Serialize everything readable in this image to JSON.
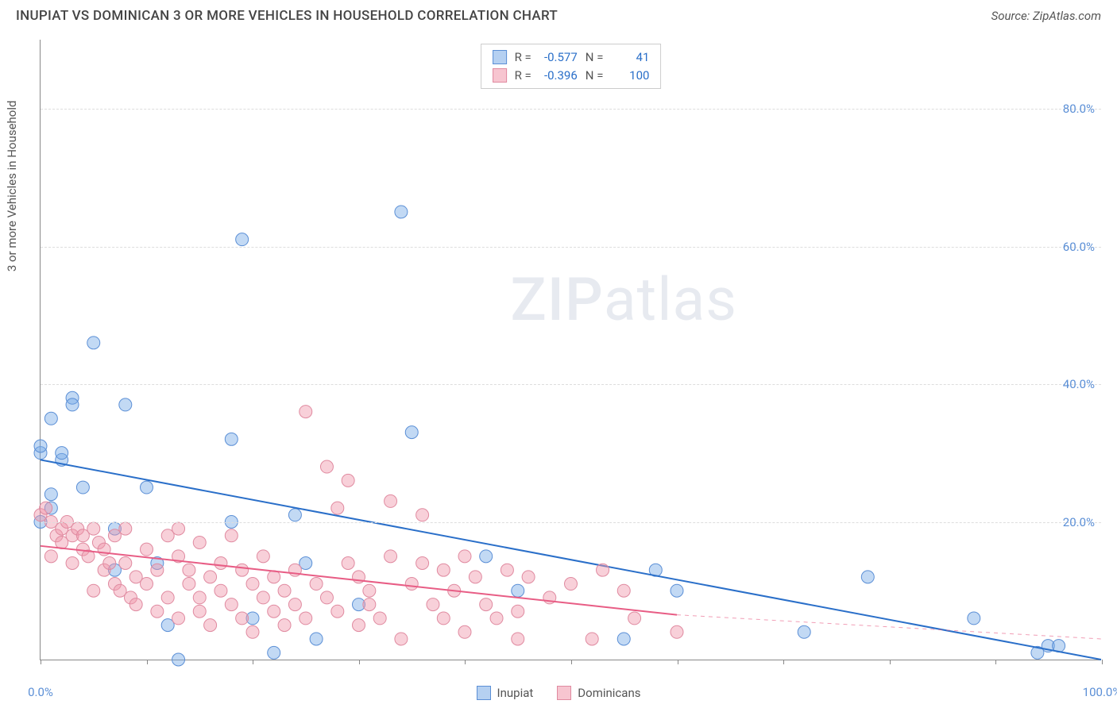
{
  "title": "INUPIAT VS DOMINICAN 3 OR MORE VEHICLES IN HOUSEHOLD CORRELATION CHART",
  "source": "Source: ZipAtlas.com",
  "y_axis_label": "3 or more Vehicles in Household",
  "watermark_bold": "ZIP",
  "watermark_light": "atlas",
  "chart": {
    "type": "scatter",
    "xlim": [
      0,
      100
    ],
    "ylim": [
      0,
      90
    ],
    "y_ticks": [
      20,
      40,
      60,
      80
    ],
    "y_tick_labels": [
      "20.0%",
      "40.0%",
      "60.0%",
      "80.0%"
    ],
    "x_ticks": [
      0,
      10,
      20,
      30,
      40,
      50,
      60,
      70,
      80,
      90,
      100
    ],
    "x_tick_labels_shown": {
      "0": "0.0%",
      "100": "100.0%"
    },
    "background_color": "#ffffff",
    "grid_color": "#dddddd",
    "axis_color": "#888888",
    "series": [
      {
        "name": "Inupiat",
        "color_fill": "rgba(120,170,230,0.45)",
        "color_stroke": "#5b8fd6",
        "marker_radius": 8,
        "R": "-0.577",
        "N": "41",
        "trend": {
          "x1": 0,
          "y1": 29,
          "x2": 100,
          "y2": 0,
          "color": "#2a6fc9",
          "width": 2
        },
        "points": [
          [
            0,
            20
          ],
          [
            0,
            30
          ],
          [
            0,
            31
          ],
          [
            1,
            22
          ],
          [
            1,
            24
          ],
          [
            1,
            35
          ],
          [
            2,
            29
          ],
          [
            2,
            30
          ],
          [
            3,
            38
          ],
          [
            3,
            37
          ],
          [
            4,
            25
          ],
          [
            5,
            46
          ],
          [
            7,
            13
          ],
          [
            7,
            19
          ],
          [
            8,
            37
          ],
          [
            10,
            25
          ],
          [
            11,
            14
          ],
          [
            12,
            5
          ],
          [
            13,
            0
          ],
          [
            18,
            20
          ],
          [
            18,
            32
          ],
          [
            19,
            61
          ],
          [
            20,
            6
          ],
          [
            22,
            1
          ],
          [
            24,
            21
          ],
          [
            25,
            14
          ],
          [
            26,
            3
          ],
          [
            30,
            8
          ],
          [
            34,
            65
          ],
          [
            35,
            33
          ],
          [
            42,
            15
          ],
          [
            45,
            10
          ],
          [
            55,
            3
          ],
          [
            58,
            13
          ],
          [
            60,
            10
          ],
          [
            72,
            4
          ],
          [
            78,
            12
          ],
          [
            88,
            6
          ],
          [
            94,
            1
          ],
          [
            95,
            2
          ],
          [
            96,
            2
          ]
        ]
      },
      {
        "name": "Dominicans",
        "color_fill": "rgba(240,150,170,0.45)",
        "color_stroke": "#e08aa0",
        "marker_radius": 8,
        "R": "-0.396",
        "N": "100",
        "trend": {
          "x1": 0,
          "y1": 16.5,
          "x2": 60,
          "y2": 6.5,
          "color": "#e85d85",
          "width": 2,
          "dash_extend_to_x": 100,
          "dash_y": 3
        },
        "points": [
          [
            0,
            21
          ],
          [
            0.5,
            22
          ],
          [
            1,
            20
          ],
          [
            1,
            15
          ],
          [
            1.5,
            18
          ],
          [
            2,
            19
          ],
          [
            2,
            17
          ],
          [
            2.5,
            20
          ],
          [
            3,
            18
          ],
          [
            3,
            14
          ],
          [
            3.5,
            19
          ],
          [
            4,
            16
          ],
          [
            4,
            18
          ],
          [
            4.5,
            15
          ],
          [
            5,
            19
          ],
          [
            5,
            10
          ],
          [
            5.5,
            17
          ],
          [
            6,
            16
          ],
          [
            6,
            13
          ],
          [
            6.5,
            14
          ],
          [
            7,
            18
          ],
          [
            7,
            11
          ],
          [
            7.5,
            10
          ],
          [
            8,
            14
          ],
          [
            8,
            19
          ],
          [
            8.5,
            9
          ],
          [
            9,
            12
          ],
          [
            9,
            8
          ],
          [
            10,
            16
          ],
          [
            10,
            11
          ],
          [
            11,
            13
          ],
          [
            11,
            7
          ],
          [
            12,
            18
          ],
          [
            12,
            9
          ],
          [
            13,
            15
          ],
          [
            13,
            19
          ],
          [
            13,
            6
          ],
          [
            14,
            11
          ],
          [
            14,
            13
          ],
          [
            15,
            9
          ],
          [
            15,
            17
          ],
          [
            15,
            7
          ],
          [
            16,
            12
          ],
          [
            16,
            5
          ],
          [
            17,
            14
          ],
          [
            17,
            10
          ],
          [
            18,
            8
          ],
          [
            18,
            18
          ],
          [
            19,
            6
          ],
          [
            19,
            13
          ],
          [
            20,
            11
          ],
          [
            20,
            4
          ],
          [
            21,
            9
          ],
          [
            21,
            15
          ],
          [
            22,
            7
          ],
          [
            22,
            12
          ],
          [
            23,
            10
          ],
          [
            23,
            5
          ],
          [
            24,
            13
          ],
          [
            24,
            8
          ],
          [
            25,
            36
          ],
          [
            25,
            6
          ],
          [
            26,
            11
          ],
          [
            27,
            9
          ],
          [
            27,
            28
          ],
          [
            28,
            22
          ],
          [
            28,
            7
          ],
          [
            29,
            14
          ],
          [
            29,
            26
          ],
          [
            30,
            5
          ],
          [
            30,
            12
          ],
          [
            31,
            10
          ],
          [
            31,
            8
          ],
          [
            32,
            6
          ],
          [
            33,
            15
          ],
          [
            33,
            23
          ],
          [
            34,
            3
          ],
          [
            35,
            11
          ],
          [
            36,
            21
          ],
          [
            36,
            14
          ],
          [
            37,
            8
          ],
          [
            38,
            13
          ],
          [
            38,
            6
          ],
          [
            39,
            10
          ],
          [
            40,
            15
          ],
          [
            40,
            4
          ],
          [
            41,
            12
          ],
          [
            42,
            8
          ],
          [
            43,
            6
          ],
          [
            44,
            13
          ],
          [
            45,
            3
          ],
          [
            45,
            7
          ],
          [
            46,
            12
          ],
          [
            48,
            9
          ],
          [
            50,
            11
          ],
          [
            52,
            3
          ],
          [
            53,
            13
          ],
          [
            55,
            10
          ],
          [
            56,
            6
          ],
          [
            60,
            4
          ]
        ]
      }
    ]
  },
  "stats_legend": {
    "rows": [
      {
        "swatch_fill": "rgba(120,170,230,0.55)",
        "swatch_border": "#5b8fd6",
        "R_label": "R =",
        "R_val": "-0.577",
        "N_label": "N =",
        "N_val": "41"
      },
      {
        "swatch_fill": "rgba(240,150,170,0.55)",
        "swatch_border": "#e08aa0",
        "R_label": "R =",
        "R_val": "-0.396",
        "N_label": "N =",
        "N_val": "100"
      }
    ]
  },
  "bottom_legend": {
    "items": [
      {
        "swatch_fill": "rgba(120,170,230,0.55)",
        "swatch_border": "#5b8fd6",
        "label": "Inupiat"
      },
      {
        "swatch_fill": "rgba(240,150,170,0.55)",
        "swatch_border": "#e08aa0",
        "label": "Dominicans"
      }
    ]
  }
}
